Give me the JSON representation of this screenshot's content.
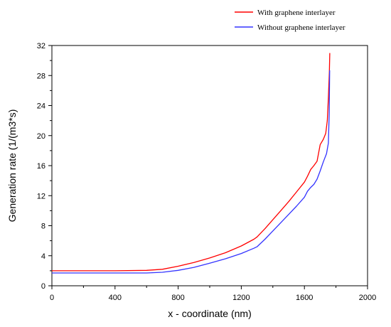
{
  "chart_data": {
    "type": "line",
    "xlabel": "x - coordinate (nm)",
    "ylabel": "Generation rate (1/(m3*s)",
    "xlim": [
      0,
      2000
    ],
    "ylim": [
      0,
      32
    ],
    "xticks": [
      0,
      400,
      800,
      1200,
      1600,
      2000
    ],
    "yticks": [
      0,
      4,
      8,
      12,
      16,
      20,
      24,
      28,
      32
    ],
    "grid": false,
    "legend_position": "top-right",
    "series": [
      {
        "name": "With graphene interlayer",
        "color": "#ff0000",
        "points": [
          [
            0,
            2.0
          ],
          [
            200,
            2.0
          ],
          [
            400,
            2.0
          ],
          [
            600,
            2.05
          ],
          [
            700,
            2.2
          ],
          [
            800,
            2.6
          ],
          [
            900,
            3.1
          ],
          [
            1000,
            3.7
          ],
          [
            1100,
            4.4
          ],
          [
            1200,
            5.3
          ],
          [
            1280,
            6.2
          ],
          [
            1300,
            6.5
          ],
          [
            1350,
            7.6
          ],
          [
            1400,
            8.8
          ],
          [
            1450,
            10.0
          ],
          [
            1500,
            11.2
          ],
          [
            1550,
            12.5
          ],
          [
            1600,
            13.8
          ],
          [
            1620,
            14.6
          ],
          [
            1640,
            15.5
          ],
          [
            1660,
            16.0
          ],
          [
            1680,
            16.6
          ],
          [
            1700,
            18.8
          ],
          [
            1720,
            19.5
          ],
          [
            1735,
            20.3
          ],
          [
            1745,
            22.0
          ],
          [
            1752,
            25.0
          ],
          [
            1758,
            28.5
          ],
          [
            1761,
            31.0
          ]
        ]
      },
      {
        "name": "Without graphene interlayer",
        "color": "#3333ff",
        "points": [
          [
            0,
            1.7
          ],
          [
            200,
            1.7
          ],
          [
            400,
            1.7
          ],
          [
            600,
            1.7
          ],
          [
            700,
            1.8
          ],
          [
            800,
            2.05
          ],
          [
            900,
            2.45
          ],
          [
            1000,
            3.0
          ],
          [
            1100,
            3.6
          ],
          [
            1200,
            4.3
          ],
          [
            1280,
            5.0
          ],
          [
            1300,
            5.2
          ],
          [
            1350,
            6.2
          ],
          [
            1400,
            7.3
          ],
          [
            1450,
            8.4
          ],
          [
            1500,
            9.5
          ],
          [
            1550,
            10.6
          ],
          [
            1600,
            11.8
          ],
          [
            1620,
            12.6
          ],
          [
            1640,
            13.1
          ],
          [
            1660,
            13.5
          ],
          [
            1680,
            14.2
          ],
          [
            1700,
            15.3
          ],
          [
            1720,
            16.5
          ],
          [
            1740,
            17.6
          ],
          [
            1752,
            19.0
          ],
          [
            1757,
            23.0
          ],
          [
            1760,
            28.7
          ]
        ]
      }
    ]
  }
}
